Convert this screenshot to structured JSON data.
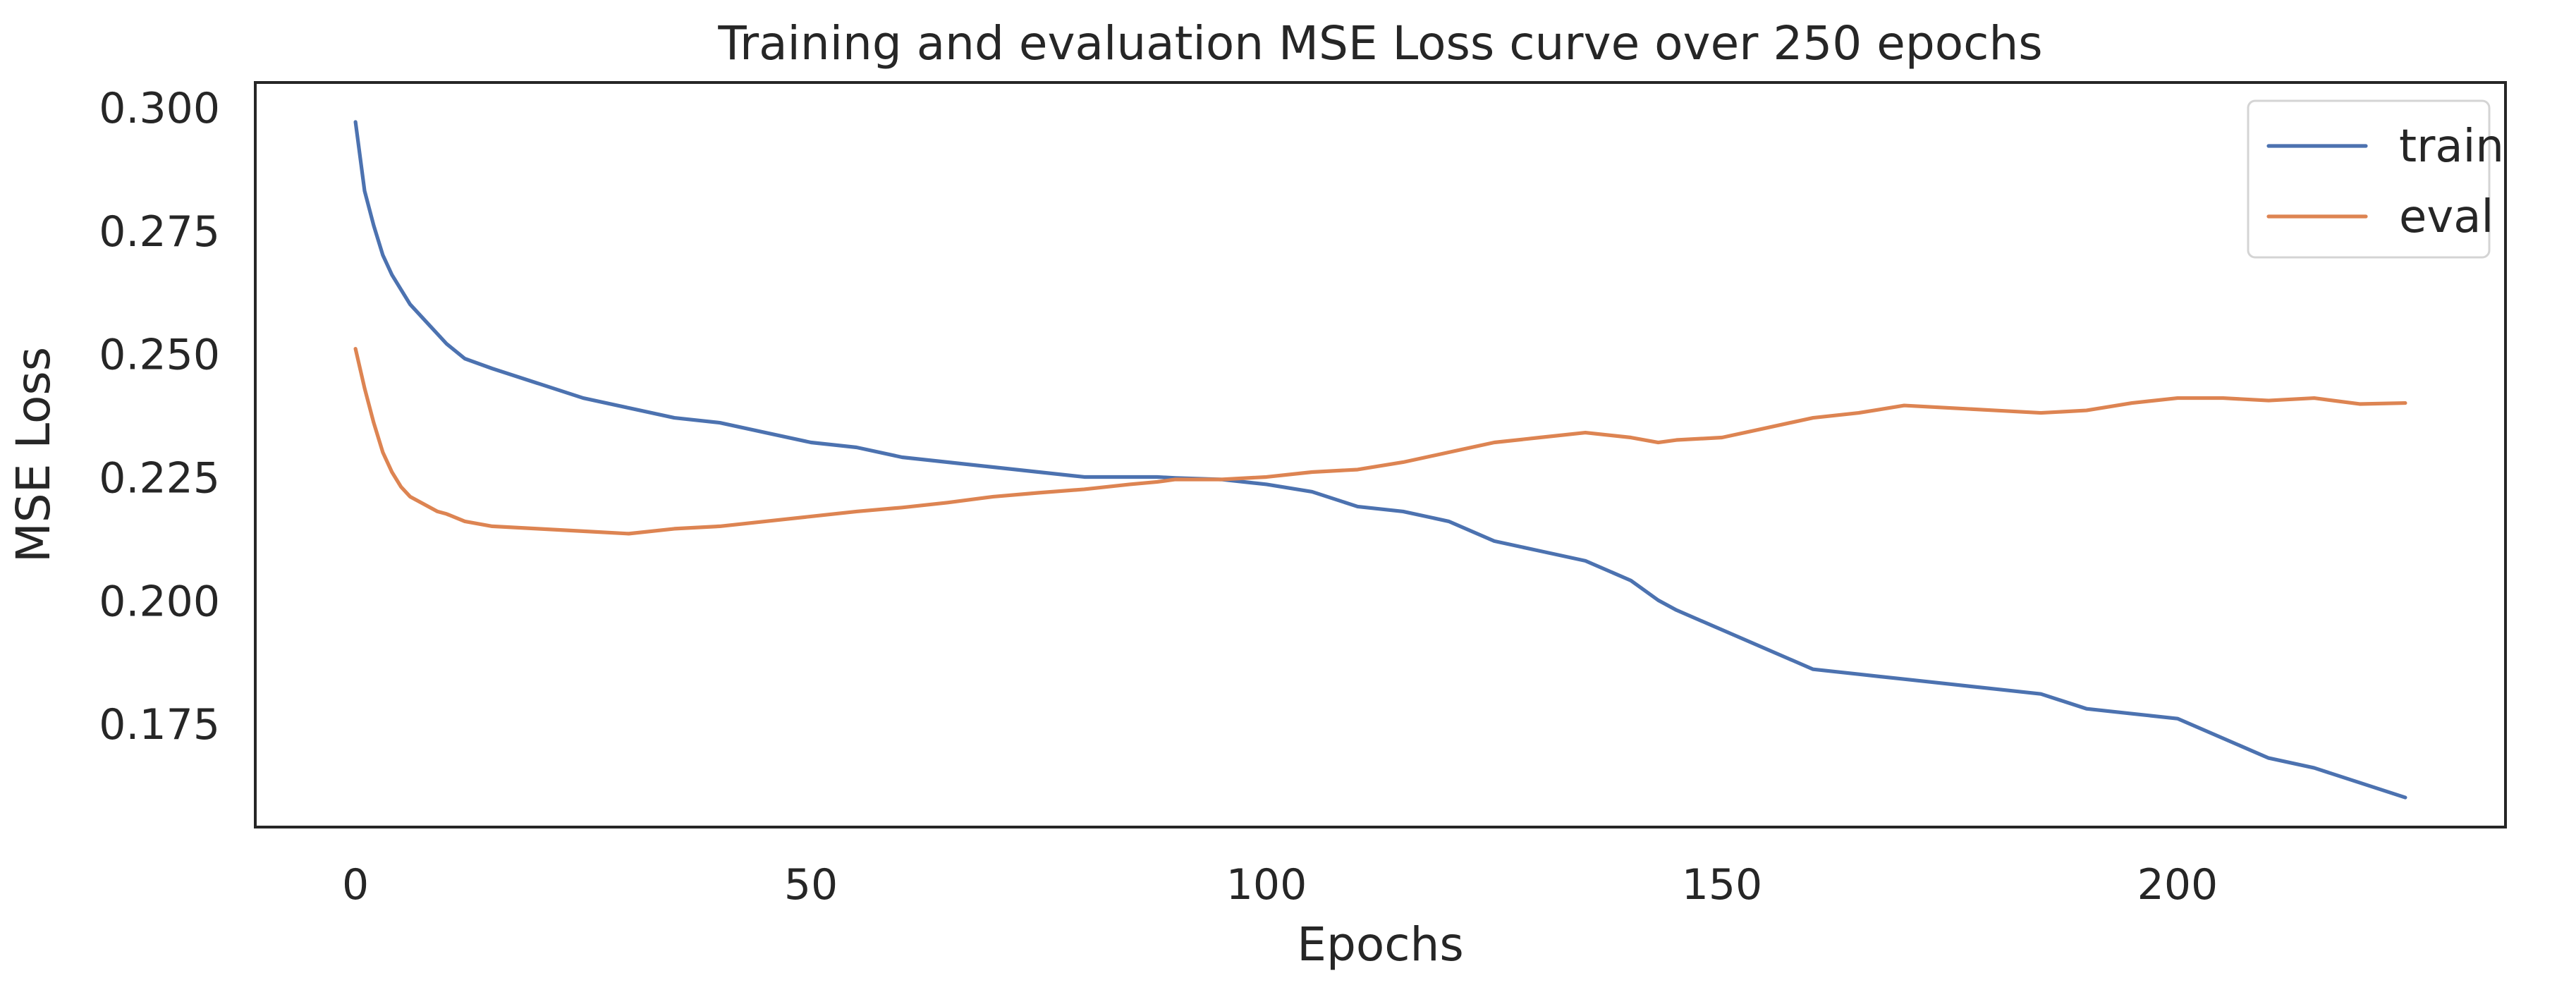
{
  "chart_data": {
    "type": "line",
    "title": "Training and evaluation MSE Loss curve over 250 epochs",
    "xlabel": "Epochs",
    "ylabel": "MSE Loss",
    "xlim": [
      -11,
      236
    ],
    "ylim": [
      0.154,
      0.305
    ],
    "xticks": [
      0,
      50,
      100,
      150,
      200
    ],
    "xtick_labels": [
      "0",
      "50",
      "100",
      "150",
      "200"
    ],
    "yticks": [
      0.175,
      0.2,
      0.225,
      0.25,
      0.275,
      0.3
    ],
    "ytick_labels": [
      "0.175",
      "0.200",
      "0.225",
      "0.250",
      "0.275",
      "0.300"
    ],
    "grid": false,
    "legend": "top-right",
    "x": [
      0,
      1,
      2,
      3,
      4,
      5,
      6,
      7,
      8,
      9,
      10,
      12,
      15,
      20,
      25,
      30,
      35,
      40,
      45,
      50,
      55,
      60,
      65,
      70,
      75,
      80,
      85,
      88,
      90,
      95,
      100,
      105,
      110,
      115,
      120,
      125,
      130,
      135,
      140,
      143,
      145,
      150,
      155,
      160,
      165,
      170,
      175,
      180,
      185,
      190,
      195,
      200,
      205,
      210,
      215,
      220,
      225
    ],
    "series": [
      {
        "name": "train",
        "color": "#4c72b0",
        "values": [
          0.297,
          0.283,
          0.276,
          0.27,
          0.266,
          0.263,
          0.26,
          0.258,
          0.256,
          0.254,
          0.252,
          0.249,
          0.247,
          0.244,
          0.241,
          0.239,
          0.237,
          0.236,
          0.234,
          0.232,
          0.231,
          0.229,
          0.228,
          0.227,
          0.226,
          0.225,
          0.225,
          0.225,
          0.2248,
          0.2245,
          0.2235,
          0.222,
          0.219,
          0.218,
          0.216,
          0.212,
          0.21,
          0.208,
          0.204,
          0.2,
          0.198,
          0.194,
          0.19,
          0.186,
          0.185,
          0.184,
          0.183,
          0.182,
          0.181,
          0.178,
          0.177,
          0.176,
          0.172,
          0.168,
          0.166,
          0.163,
          0.16
        ]
      },
      {
        "name": "eval",
        "color": "#dd8452",
        "values": [
          0.251,
          0.243,
          0.236,
          0.23,
          0.226,
          0.223,
          0.221,
          0.22,
          0.219,
          0.218,
          0.2175,
          0.216,
          0.215,
          0.2145,
          0.214,
          0.2135,
          0.2145,
          0.215,
          0.216,
          0.217,
          0.218,
          0.2188,
          0.2198,
          0.221,
          0.2218,
          0.2225,
          0.2235,
          0.224,
          0.2245,
          0.2245,
          0.225,
          0.226,
          0.2265,
          0.228,
          0.23,
          0.232,
          0.233,
          0.234,
          0.233,
          0.232,
          0.2325,
          0.233,
          0.235,
          0.237,
          0.238,
          0.2395,
          0.239,
          0.2385,
          0.238,
          0.2385,
          0.24,
          0.241,
          0.241,
          0.2405,
          0.241,
          0.2398,
          0.24
        ]
      }
    ]
  }
}
